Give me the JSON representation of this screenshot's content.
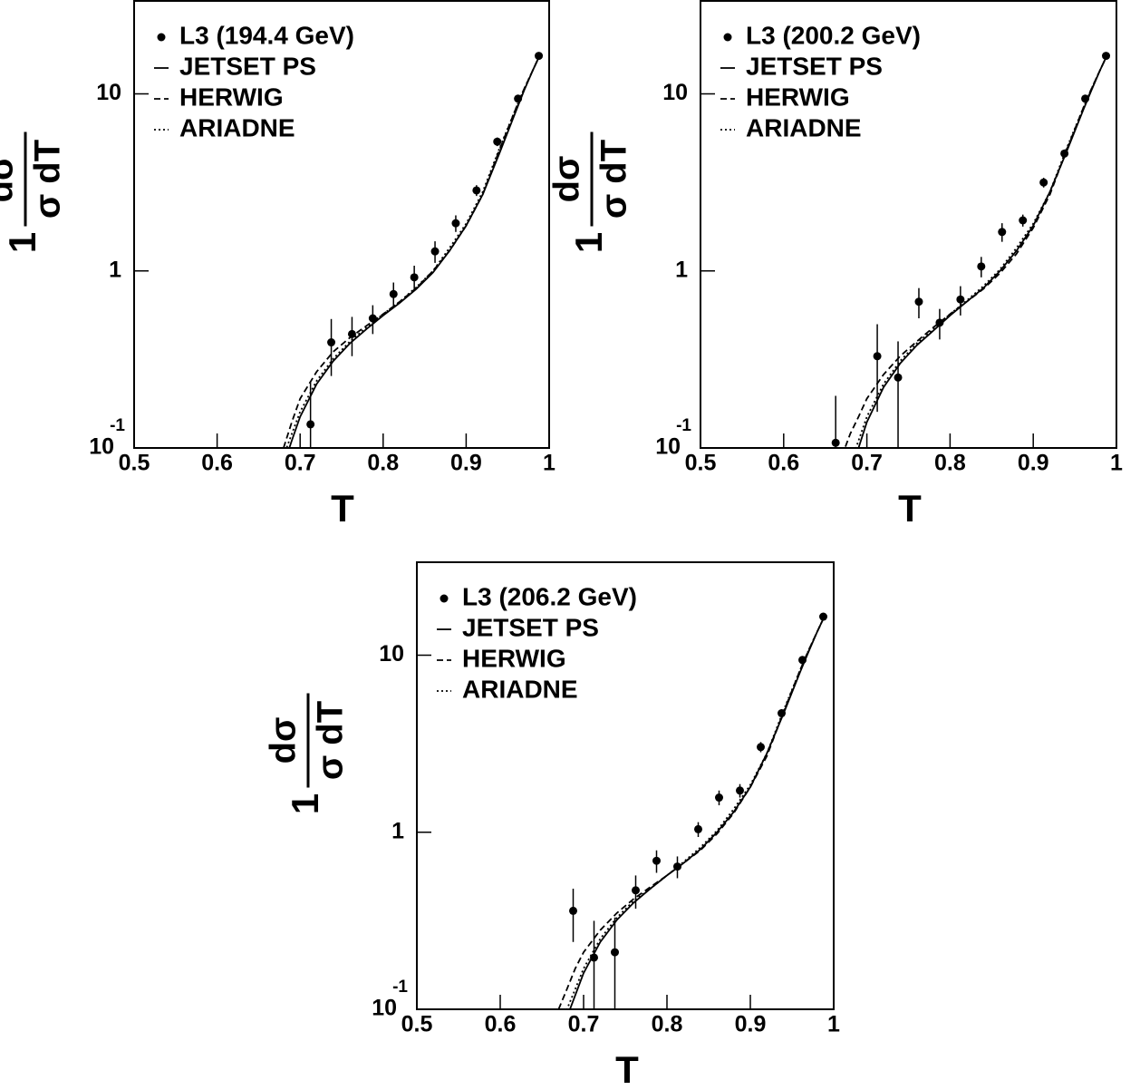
{
  "chart_data": [
    {
      "type": "scatter",
      "log_y": true,
      "xlabel": "T",
      "ylabel": {
        "prefix": "1",
        "numerator": "dσ",
        "denominator": "σ dT"
      },
      "xlim": [
        0.5,
        1
      ],
      "ylim": [
        0.1,
        33.5
      ],
      "xticks": [
        0.5,
        0.6,
        0.7,
        0.8,
        0.9,
        1
      ],
      "yticks": [
        {
          "value": 0.1,
          "label": "10",
          "exponent": "-1"
        },
        1,
        10
      ],
      "data": {
        "name": "L3 (194.4 GeV)",
        "color": "#000000",
        "x": [
          0.7125,
          0.7375,
          0.7625,
          0.7875,
          0.8125,
          0.8375,
          0.8625,
          0.8875,
          0.9125,
          0.9375,
          0.9625,
          0.9875
        ],
        "values": [
          0.136,
          0.395,
          0.44,
          0.54,
          0.74,
          0.92,
          1.29,
          1.86,
          2.85,
          5.37,
          9.4,
          16.4
        ],
        "errors": [
          0.1,
          0.14,
          0.11,
          0.1,
          0.12,
          0.15,
          0.18,
          0.2,
          0.2,
          0.3,
          0.3,
          0.3
        ]
      },
      "models": {
        "x": [
          0.68,
          0.69,
          0.7,
          0.72,
          0.74,
          0.76,
          0.78,
          0.8,
          0.82,
          0.84,
          0.86,
          0.88,
          0.9,
          0.92,
          0.94,
          0.96,
          0.97,
          0.98,
          0.99
        ],
        "series": [
          {
            "name": "JETSET PS",
            "color": "#000000",
            "style": "solid",
            "values": [
              0.08,
              0.11,
              0.15,
              0.23,
              0.31,
              0.39,
              0.47,
              0.56,
              0.66,
              0.79,
              0.98,
              1.3,
              1.8,
              2.7,
              4.6,
              8.0,
              10.5,
              13.5,
              17
            ]
          },
          {
            "name": "HERWIG",
            "color": "#000000",
            "style": "dashed",
            "values": [
              0.1,
              0.14,
              0.19,
              0.27,
              0.35,
              0.42,
              0.49,
              0.57,
              0.67,
              0.8,
              1.0,
              1.3,
              1.8,
              2.7,
              4.8,
              8.3,
              10.7,
              13.5,
              17
            ]
          },
          {
            "name": "ARIADNE",
            "color": "#000000",
            "style": "dotted",
            "values": [
              0.09,
              0.12,
              0.16,
              0.24,
              0.32,
              0.4,
              0.48,
              0.57,
              0.67,
              0.81,
              1.0,
              1.35,
              1.85,
              2.8,
              4.9,
              8.3,
              10.7,
              13.5,
              17
            ]
          }
        ]
      }
    },
    {
      "type": "scatter",
      "log_y": true,
      "xlabel": "T",
      "ylabel": {
        "prefix": "1",
        "numerator": "dσ",
        "denominator": "σ dT"
      },
      "xlim": [
        0.5,
        1
      ],
      "ylim": [
        0.1,
        33.5
      ],
      "xticks": [
        0.5,
        0.6,
        0.7,
        0.8,
        0.9,
        1
      ],
      "yticks": [
        {
          "value": 0.1,
          "label": "10",
          "exponent": "-1"
        },
        1,
        10
      ],
      "data": {
        "name": "L3 (200.2 GeV)",
        "color": "#000000",
        "x": [
          0.6625,
          0.7125,
          0.7375,
          0.7625,
          0.7875,
          0.8125,
          0.8375,
          0.8625,
          0.8875,
          0.9125,
          0.9375,
          0.9625,
          0.9875
        ],
        "values": [
          0.107,
          0.33,
          0.25,
          0.67,
          0.51,
          0.69,
          1.06,
          1.66,
          1.93,
          3.16,
          4.6,
          9.4,
          16.4
        ],
        "errors": [
          0.09,
          0.17,
          0.15,
          0.13,
          0.1,
          0.13,
          0.14,
          0.2,
          0.15,
          0.2,
          0.25,
          0.3,
          0.3
        ]
      },
      "models": {
        "x": [
          0.67,
          0.68,
          0.69,
          0.7,
          0.72,
          0.74,
          0.76,
          0.78,
          0.8,
          0.82,
          0.84,
          0.86,
          0.88,
          0.9,
          0.92,
          0.94,
          0.96,
          0.97,
          0.98,
          0.99
        ],
        "series": [
          {
            "name": "JETSET PS",
            "color": "#000000",
            "style": "solid",
            "values": [
              0.05,
              0.07,
              0.1,
              0.14,
              0.22,
              0.3,
              0.38,
              0.46,
              0.56,
              0.67,
              0.8,
              1.0,
              1.3,
              1.8,
              2.8,
              4.7,
              8.1,
              10.5,
              13.5,
              17
            ]
          },
          {
            "name": "HERWIG",
            "color": "#000000",
            "style": "dashed",
            "values": [
              0.09,
              0.12,
              0.15,
              0.19,
              0.26,
              0.33,
              0.4,
              0.48,
              0.57,
              0.67,
              0.79,
              0.97,
              1.25,
              1.75,
              2.7,
              4.8,
              8.3,
              10.7,
              13.5,
              17
            ]
          },
          {
            "name": "ARIADNE",
            "color": "#000000",
            "style": "dotted",
            "values": [
              0.06,
              0.08,
              0.11,
              0.15,
              0.23,
              0.31,
              0.39,
              0.47,
              0.57,
              0.68,
              0.82,
              1.02,
              1.35,
              1.85,
              2.8,
              4.9,
              8.3,
              10.7,
              13.5,
              17
            ]
          }
        ]
      }
    },
    {
      "type": "scatter",
      "log_y": true,
      "xlabel": "T",
      "ylabel": {
        "prefix": "1",
        "numerator": "dσ",
        "denominator": "σ dT"
      },
      "xlim": [
        0.5,
        1
      ],
      "ylim": [
        0.1,
        33.5
      ],
      "xticks": [
        0.5,
        0.6,
        0.7,
        0.8,
        0.9,
        1
      ],
      "yticks": [
        {
          "value": 0.1,
          "label": "10",
          "exponent": "-1"
        },
        1,
        10
      ],
      "data": {
        "name": "L3 (206.2 GeV)",
        "color": "#000000",
        "x": [
          0.6875,
          0.7125,
          0.7375,
          0.7625,
          0.7875,
          0.8125,
          0.8375,
          0.8625,
          0.8875,
          0.9125,
          0.9375,
          0.9625,
          0.9875
        ],
        "values": [
          0.36,
          0.196,
          0.21,
          0.47,
          0.69,
          0.64,
          1.04,
          1.57,
          1.72,
          3.03,
          4.7,
          9.4,
          16.5
        ],
        "errors": [
          0.12,
          0.12,
          0.12,
          0.1,
          0.1,
          0.09,
          0.1,
          0.15,
          0.15,
          0.2,
          0.25,
          0.3,
          0.3
        ]
      },
      "models": {
        "x": [
          0.67,
          0.68,
          0.69,
          0.7,
          0.72,
          0.74,
          0.76,
          0.78,
          0.8,
          0.82,
          0.84,
          0.86,
          0.88,
          0.9,
          0.92,
          0.94,
          0.96,
          0.97,
          0.98,
          0.99
        ],
        "series": [
          {
            "name": "JETSET PS",
            "color": "#000000",
            "style": "solid",
            "values": [
              0.07,
              0.09,
              0.12,
              0.16,
              0.24,
              0.32,
              0.4,
              0.48,
              0.57,
              0.67,
              0.8,
              1.0,
              1.3,
              1.8,
              2.8,
              4.7,
              8.1,
              10.5,
              13.5,
              17
            ]
          },
          {
            "name": "HERWIG",
            "color": "#000000",
            "style": "dashed",
            "values": [
              0.1,
              0.13,
              0.17,
              0.21,
              0.28,
              0.35,
              0.42,
              0.49,
              0.57,
              0.67,
              0.79,
              0.98,
              1.28,
              1.8,
              2.7,
              4.8,
              8.3,
              10.7,
              13.5,
              17
            ]
          },
          {
            "name": "ARIADNE",
            "color": "#000000",
            "style": "dotted",
            "values": [
              0.08,
              0.1,
              0.13,
              0.17,
              0.25,
              0.33,
              0.41,
              0.48,
              0.57,
              0.68,
              0.82,
              1.02,
              1.35,
              1.85,
              2.8,
              4.9,
              8.3,
              10.7,
              13.5,
              17
            ]
          }
        ]
      }
    }
  ]
}
